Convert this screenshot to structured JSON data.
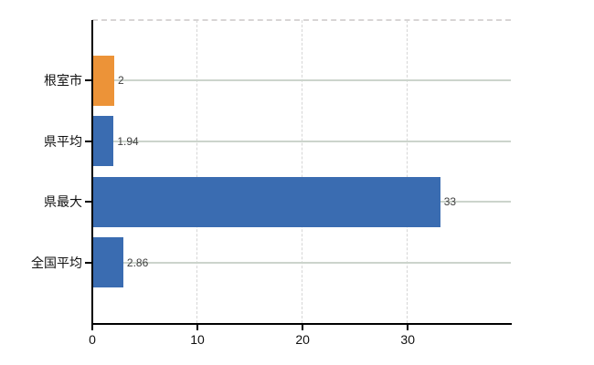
{
  "chart_data": {
    "type": "bar",
    "orientation": "horizontal",
    "title": "",
    "categories": [
      "根室市",
      "県平均",
      "県最大",
      "全国平均"
    ],
    "values": [
      2,
      1.94,
      33,
      2.86
    ],
    "value_labels": [
      "2",
      "1.94",
      "33",
      "2.86"
    ],
    "bar_colors": [
      "#ec9338",
      "#3a6cb1",
      "#3a6cb1",
      "#3a6cb1"
    ],
    "x_ticks": [
      0,
      10,
      20,
      30
    ],
    "x_tick_labels": [
      "0",
      "10",
      "20",
      "30"
    ],
    "xlim": [
      0,
      39.8
    ],
    "grid": true,
    "legend_position": "none"
  },
  "colors": {
    "bar_blue": "#3a6cb1",
    "bar_orange": "#ec9338",
    "grid_horizontal": "#ccd4cc",
    "grid_vertical": "#d6d6d6",
    "axis": "#000000",
    "value_label": "#3f3f3f",
    "tick_label": "#111111",
    "background": "#ffffff"
  }
}
